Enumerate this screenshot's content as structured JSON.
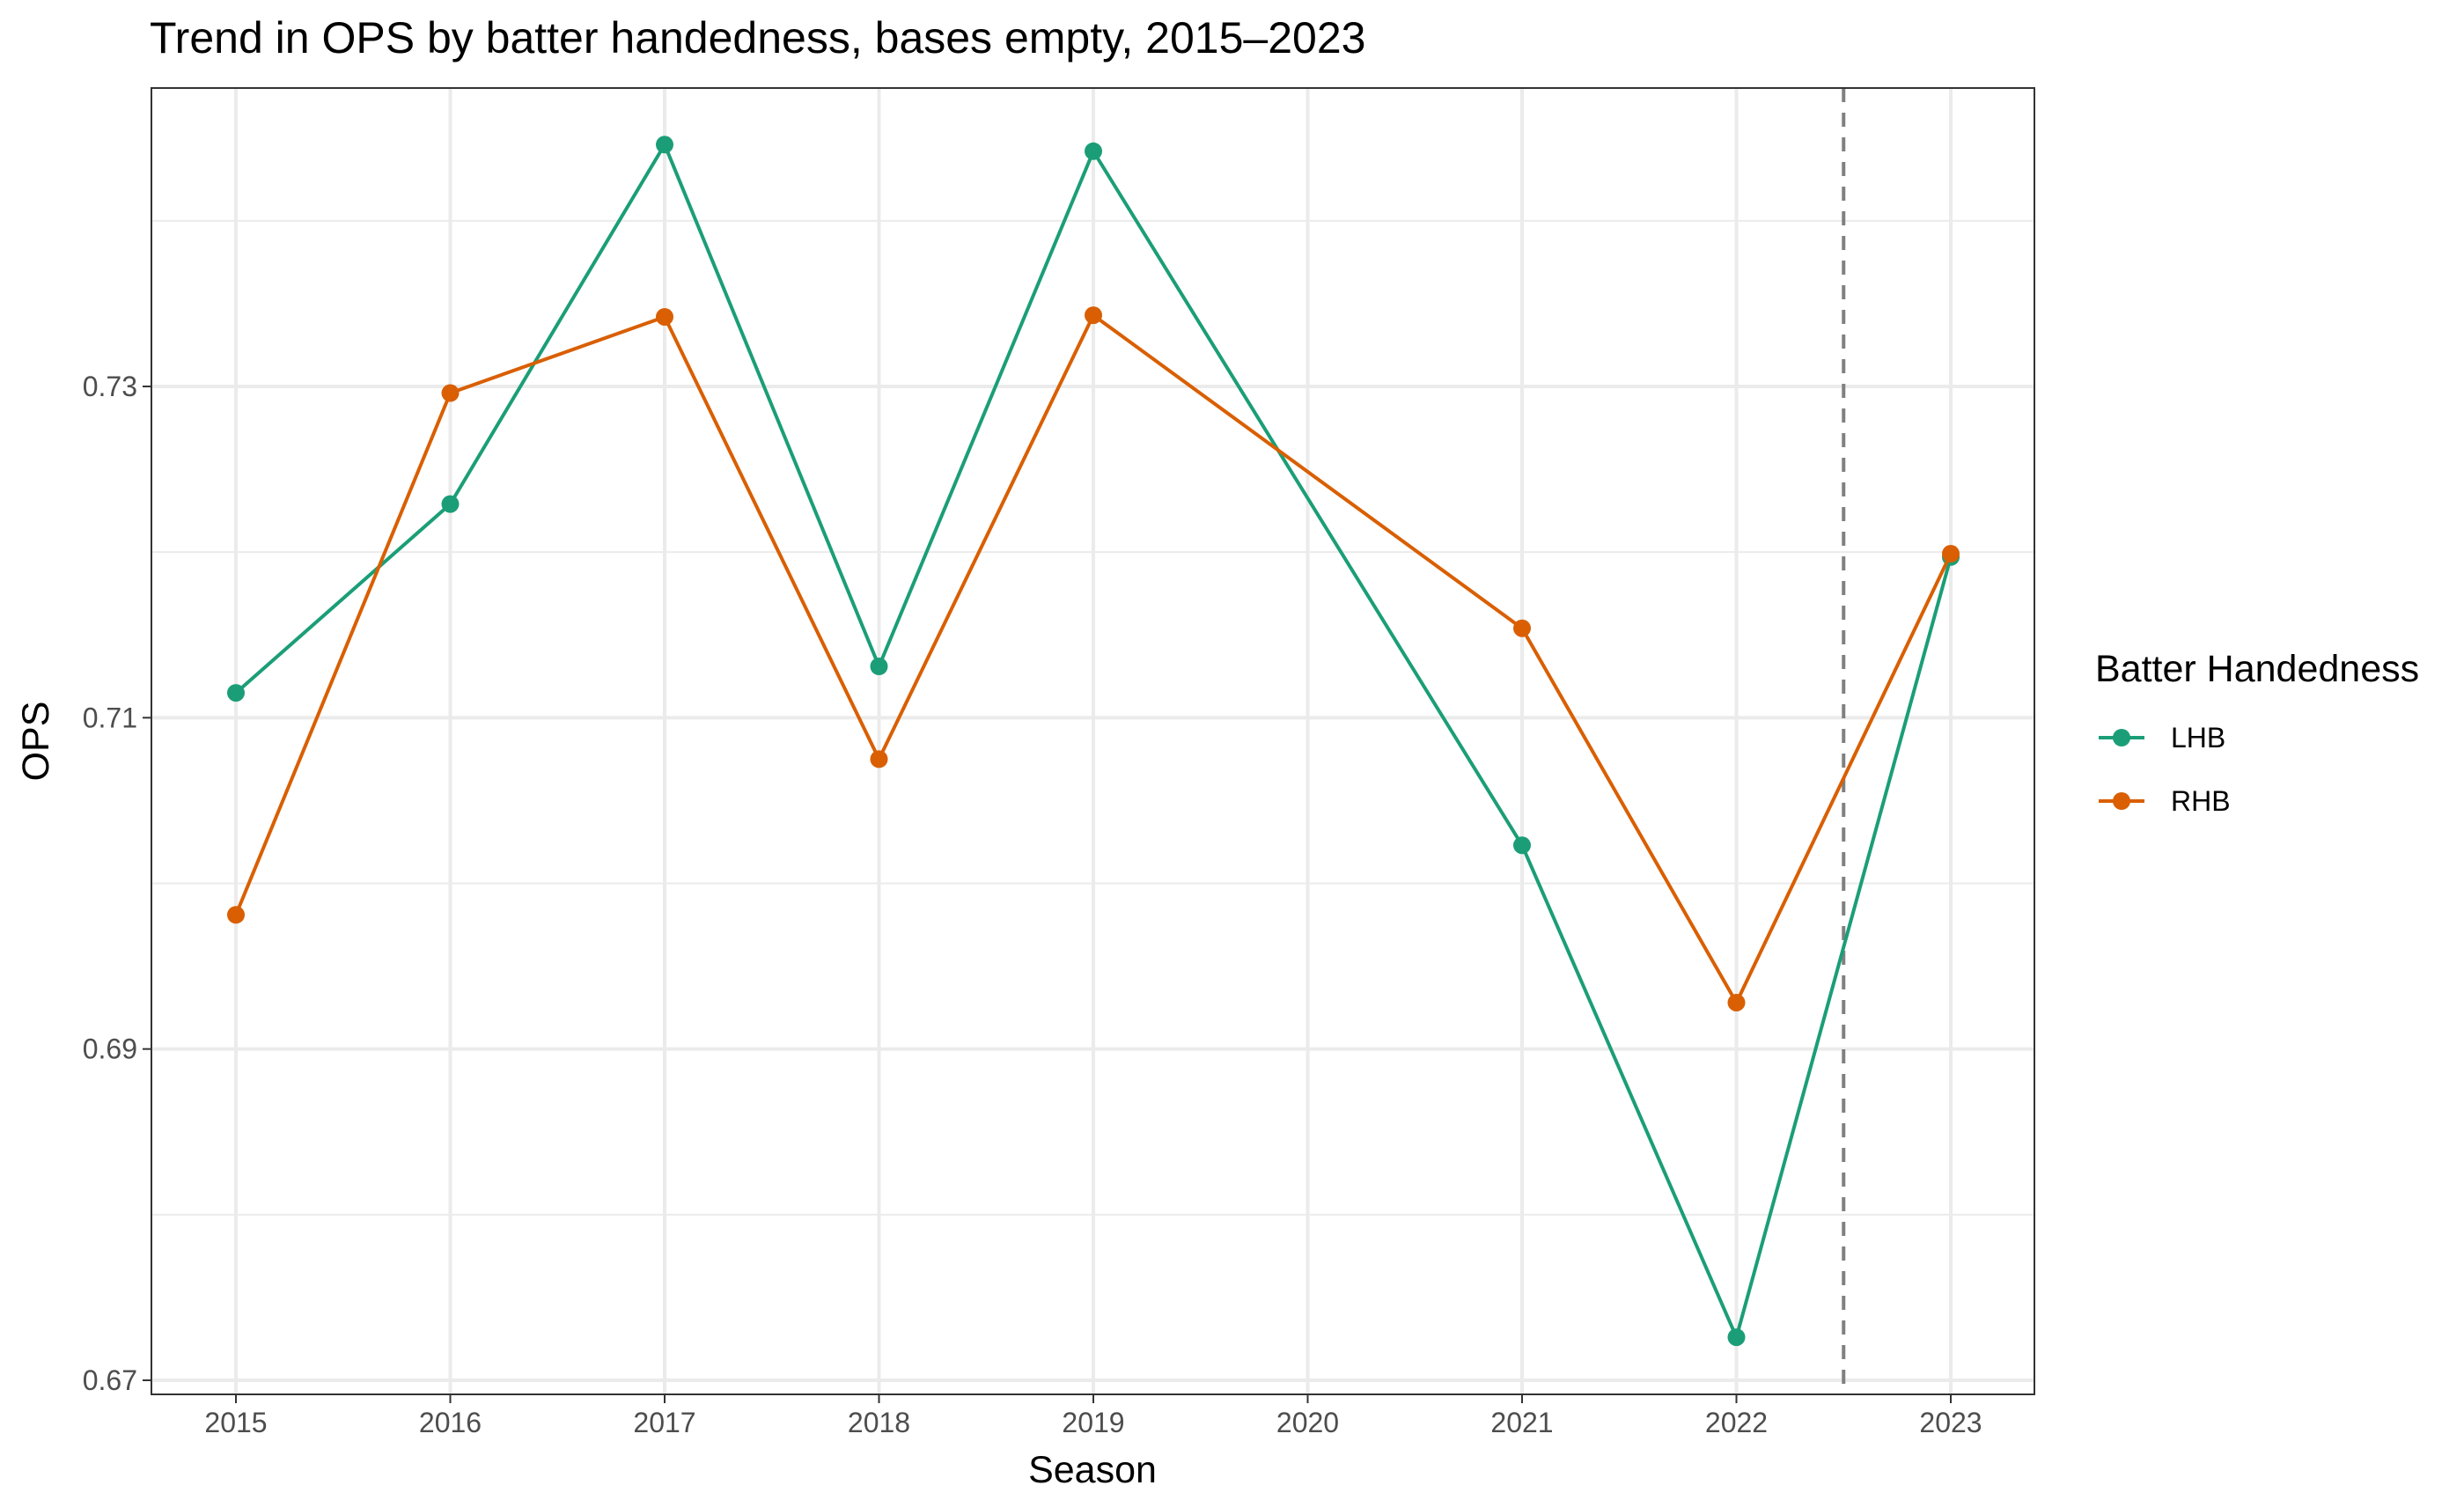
{
  "chart_data": {
    "type": "line",
    "title": "Trend in OPS by batter handedness, bases empty, 2015–2023",
    "xlabel": "Season",
    "ylabel": "OPS",
    "x": [
      "2015",
      "2016",
      "2017",
      "2018",
      "2019",
      "2020",
      "2021",
      "2022",
      "2023"
    ],
    "xlim": [
      2015,
      2023
    ],
    "ylim": [
      0.67,
      0.76
    ],
    "y_ticks": [
      "0.67",
      "0.69",
      "0.71",
      "0.73"
    ],
    "grid": true,
    "reference_line": {
      "x": 2022.5,
      "style": "dashed"
    },
    "legend": {
      "title": "Batter Handedness",
      "position": "right"
    },
    "series": [
      {
        "name": "LHB",
        "color": "#1b9e77",
        "points": [
          {
            "x": 2015,
            "y": 0.7115
          },
          {
            "x": 2016,
            "y": 0.7229
          },
          {
            "x": 2017,
            "y": 0.7446
          },
          {
            "x": 2018,
            "y": 0.7131
          },
          {
            "x": 2019,
            "y": 0.7442
          },
          {
            "x": 2021,
            "y": 0.7023
          },
          {
            "x": 2022,
            "y": 0.6726
          },
          {
            "x": 2023,
            "y": 0.7197
          }
        ]
      },
      {
        "name": "RHB",
        "color": "#d95f02",
        "points": [
          {
            "x": 2015,
            "y": 0.6981
          },
          {
            "x": 2016,
            "y": 0.7296
          },
          {
            "x": 2017,
            "y": 0.7342
          },
          {
            "x": 2018,
            "y": 0.7075
          },
          {
            "x": 2019,
            "y": 0.7343
          },
          {
            "x": 2021,
            "y": 0.7154
          },
          {
            "x": 2022,
            "y": 0.6928
          },
          {
            "x": 2023,
            "y": 0.7199
          }
        ]
      }
    ]
  }
}
